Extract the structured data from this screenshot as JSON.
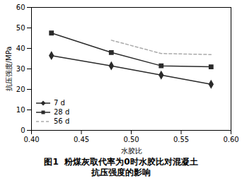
{
  "chart_data": {
    "type": "line",
    "xlabel": "水胶比",
    "ylabel": "抗压强度/MPa",
    "caption": [
      "图1  粉煤灰取代率为0时水胶比对混凝土",
      "抗压强度的影响"
    ],
    "series": [
      {
        "name": "7 d",
        "color": "#2a2a2a",
        "marker": "diamond",
        "line_style": "solid",
        "x": [
          0.42,
          0.48,
          0.53,
          0.58
        ],
        "values": [
          36.5,
          31.5,
          27.0,
          22.5
        ]
      },
      {
        "name": "28 d",
        "color": "#2a2a2a",
        "marker": "square",
        "line_style": "solid",
        "x": [
          0.42,
          0.48,
          0.53,
          0.58
        ],
        "values": [
          47.5,
          38.0,
          31.5,
          31.0
        ]
      },
      {
        "name": "56 d",
        "color": "#aaaaaa",
        "marker": "none",
        "line_style": "dashed",
        "x": [
          0.48,
          0.53,
          0.58
        ],
        "values": [
          44.0,
          37.5,
          37.0
        ]
      }
    ],
    "xlim": [
      0.4,
      0.6
    ],
    "xticks": [
      {
        "value": 0.4,
        "label": "0.40"
      },
      {
        "value": 0.45,
        "label": "0.45"
      },
      {
        "value": 0.5,
        "label": "0.50"
      },
      {
        "value": 0.55,
        "label": "0.55"
      },
      {
        "value": 0.6,
        "label": "0.60"
      }
    ],
    "ylim": [
      0,
      60
    ],
    "yticks": [
      0,
      10,
      20,
      30,
      40,
      50,
      60
    ],
    "grid": false,
    "legend": "lower left"
  }
}
